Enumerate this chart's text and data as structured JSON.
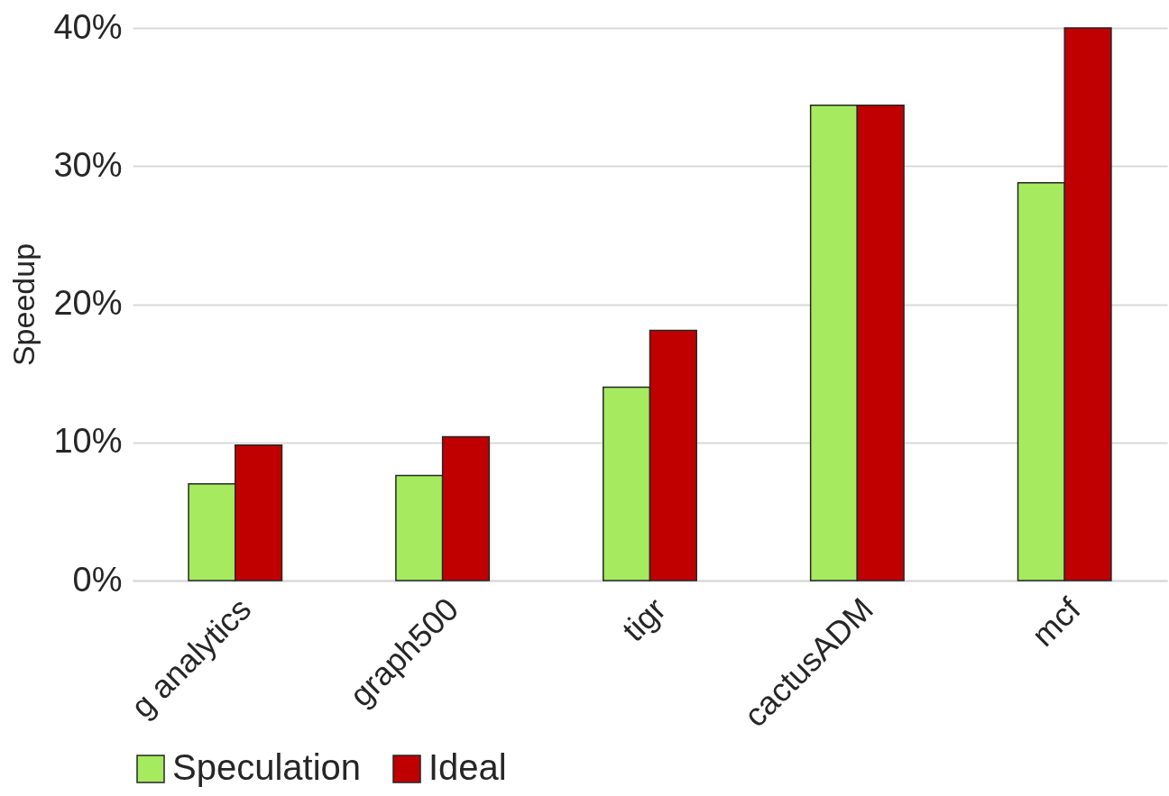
{
  "chart_data": {
    "type": "bar",
    "ylabel": "Speedup",
    "categories": [
      "g analytics",
      "graph500",
      "tigr",
      "cactusADM",
      "mcf"
    ],
    "series": [
      {
        "name": "Speculation",
        "color": "#a6eb5f",
        "values": [
          7.0,
          7.6,
          14.0,
          34.4,
          28.8
        ]
      },
      {
        "name": "Ideal",
        "color": "#c00000",
        "values": [
          9.8,
          10.4,
          18.1,
          34.4,
          40.0
        ]
      }
    ],
    "ylim": [
      0,
      40
    ],
    "yticks": [
      {
        "value": 0,
        "label": "0%"
      },
      {
        "value": 10,
        "label": "10%"
      },
      {
        "value": 20,
        "label": "20%"
      },
      {
        "value": 30,
        "label": "30%"
      },
      {
        "value": 40,
        "label": "40%"
      }
    ],
    "grid": "y",
    "legend": "bottom"
  }
}
